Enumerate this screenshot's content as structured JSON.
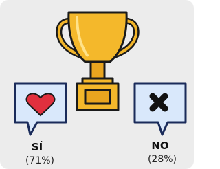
{
  "options": [
    {
      "label": "SÍ",
      "result": "(71%)"
    },
    {
      "label": "NO",
      "result": "(28%)"
    }
  ]
}
